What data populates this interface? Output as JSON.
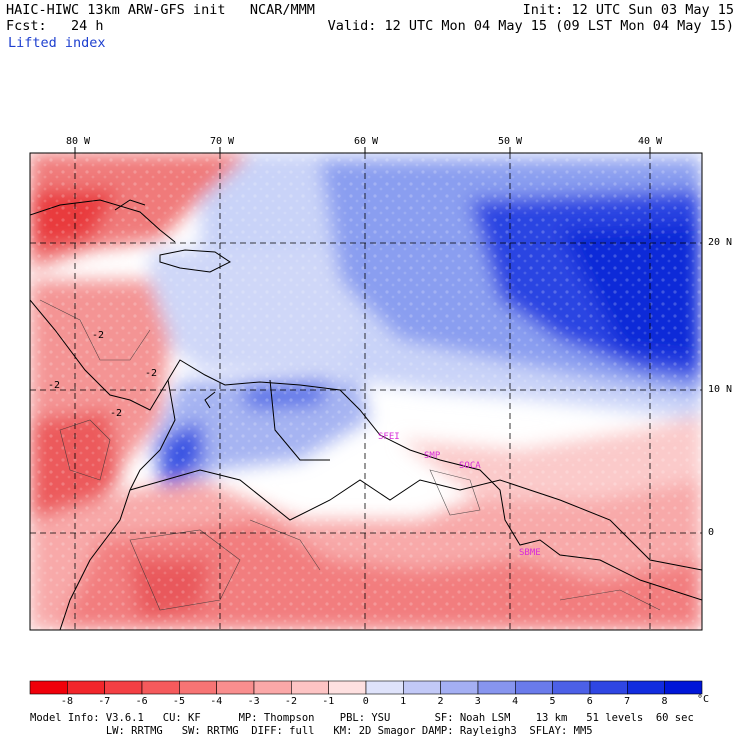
{
  "header": {
    "model_line": "HAIC-HIWC 13km ARW-GFS init   NCAR/MMM",
    "fcst_line": "Fcst:   24 h",
    "field_name": "Lifted index",
    "init_line": "Init: 12 UTC Sun 03 May 15",
    "valid_line": "Valid: 12 UTC Mon 04 May 15 (09 LST Mon 04 May 15)"
  },
  "map": {
    "lon_labels": [
      "80 W",
      "70 W",
      "60 W",
      "50 W",
      "40 W"
    ],
    "lat_labels": [
      "20 N",
      "10 N",
      "0"
    ],
    "contour_labels": [
      "-2",
      "-2",
      "-2",
      "-2"
    ],
    "stations": [
      "SFEI",
      "SMP",
      "SOCA",
      "SBME"
    ],
    "colors": {
      "strong_neg": "#e8242b",
      "mid_neg": "#f27c7c",
      "weak_neg": "#fbd2d2",
      "neutral": "#ffffff",
      "weak_pos": "#c8d2f8",
      "mid_pos": "#6f86ec",
      "strong_pos": "#1a36e0",
      "station": "#d82cd8"
    }
  },
  "colorbar": {
    "ticks": [
      "-8",
      "-7",
      "-6",
      "-5",
      "-4",
      "-3",
      "-2",
      "-1",
      "0",
      "1",
      "2",
      "3",
      "4",
      "5",
      "6",
      "7",
      "8"
    ],
    "unit": "°C",
    "colors": [
      "#f0000a",
      "#f2262b",
      "#f43f44",
      "#f55a5c",
      "#f77474",
      "#f98e8e",
      "#fba8a8",
      "#fdc4c4",
      "#fee0e0",
      "#dfe3fb",
      "#c2c9f7",
      "#a4aff3",
      "#8795ef",
      "#6a7beb",
      "#4c60e7",
      "#2f46e3",
      "#122cdf",
      "#0016d8"
    ]
  },
  "footer": {
    "line1": "Model Info: V3.6.1   CU: KF      MP: Thompson    PBL: YSU       SF: Noah LSM    13 km   51 levels  60 sec",
    "line2": "            LW: RRTMG   SW: RRTMG  DIFF: full   KM: 2D Smagor DAMP: Rayleigh3  SFLAY: MM5"
  }
}
